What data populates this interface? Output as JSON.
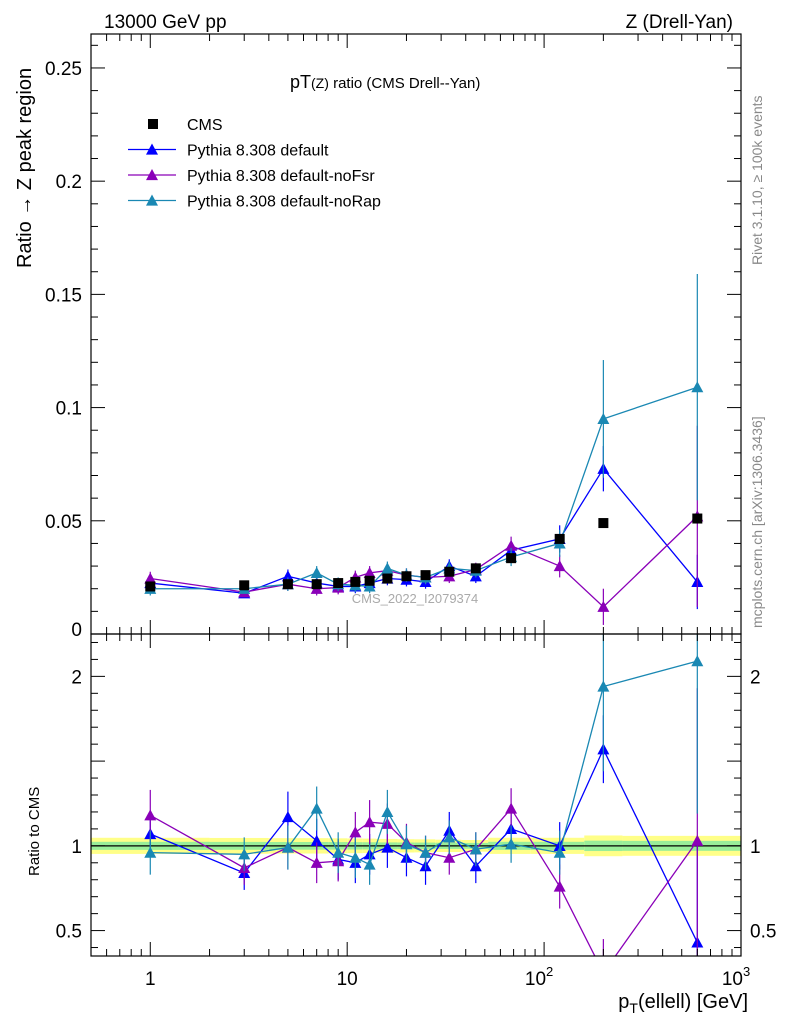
{
  "header": {
    "left": "13000 GeV pp",
    "right": "Z (Drell-Yan)"
  },
  "side_labels": {
    "rivet": "Rivet 3.1.10, ≥ 100k events",
    "mcplots": "mcplots.cern.ch [arXiv:1306.3436]"
  },
  "chart_data": {
    "type": "scatter",
    "title_main": "pT",
    "title_sub": "(Z)",
    "title_rest": " ratio (CMS Drell--Yan)",
    "watermark": "CMS_2022_I2079374",
    "xlabel_main": "p",
    "xlabel_sub": "T",
    "xlabel_rest": "(ellell) [GeV]",
    "ylabel": "Ratio → Z peak region",
    "ratio_ylabel": "Ratio to CMS",
    "x_scale": "log",
    "xlim": [
      0.5,
      1000
    ],
    "ylim": [
      0,
      0.265
    ],
    "ratio_ylim": [
      0.35,
      2.25
    ],
    "x_ticks": [
      {
        "value": 1,
        "label": "1"
      },
      {
        "value": 10,
        "label": "10"
      },
      {
        "value": 100,
        "label": "10",
        "exp": "2"
      },
      {
        "value": 1000,
        "label": "10",
        "exp": "3"
      }
    ],
    "y_ticks": [
      {
        "value": 0,
        "label": "0"
      },
      {
        "value": 0.05,
        "label": "0.05"
      },
      {
        "value": 0.1,
        "label": "0.1"
      },
      {
        "value": 0.15,
        "label": "0.15"
      },
      {
        "value": 0.2,
        "label": "0.2"
      },
      {
        "value": 0.25,
        "label": "0.25"
      }
    ],
    "ratio_ticks": [
      {
        "value": 0.5,
        "label": "0.5"
      },
      {
        "value": 1,
        "label": "1"
      },
      {
        "value": 2,
        "label": "2"
      }
    ],
    "x": [
      1,
      3,
      5,
      7,
      9,
      11,
      13,
      16,
      20,
      25,
      33,
      45,
      68,
      120,
      200,
      600
    ],
    "bin_edges": [
      0.5,
      2,
      4,
      6,
      8,
      10,
      12,
      14,
      18,
      22,
      28,
      38,
      52,
      85,
      160,
      250,
      1000
    ],
    "legend": [
      {
        "label": "CMS",
        "series": "cms"
      },
      {
        "label": "Pythia 8.308 default",
        "series": "default"
      },
      {
        "label": "Pythia 8.308 default-noFsr",
        "series": "noFsr"
      },
      {
        "label": "Pythia 8.308 default-noRap",
        "series": "noRap"
      }
    ],
    "series": [
      {
        "id": "cms",
        "name": "CMS",
        "color": "#000000",
        "marker": "square",
        "values": [
          0.021,
          0.0215,
          0.022,
          0.022,
          0.0225,
          0.023,
          0.0235,
          0.0245,
          0.0255,
          0.026,
          0.0275,
          0.029,
          0.0335,
          0.042,
          0.049,
          0.051
        ],
        "errors": [
          0.0005,
          0.0005,
          0.0005,
          0.0005,
          0.0005,
          0.0005,
          0.0005,
          0.0005,
          0.0005,
          0.0005,
          0.0005,
          0.0005,
          0.0008,
          0.001,
          0.0015,
          0.0015
        ]
      },
      {
        "id": "default",
        "name": "Pythia 8.308 default",
        "color": "#0000ff",
        "marker": "triangle",
        "values": [
          0.0225,
          0.018,
          0.0255,
          0.0225,
          0.021,
          0.021,
          0.0225,
          0.0245,
          0.024,
          0.023,
          0.03,
          0.0255,
          0.037,
          0.042,
          0.073,
          0.023
        ],
        "errors": [
          0.003,
          0.002,
          0.003,
          0.003,
          0.003,
          0.003,
          0.003,
          0.003,
          0.003,
          0.003,
          0.003,
          0.003,
          0.004,
          0.006,
          0.01,
          0.012
        ],
        "ratio": [
          1.07,
          0.84,
          1.17,
          1.03,
          0.92,
          0.9,
          0.95,
          0.99,
          0.93,
          0.88,
          1.09,
          0.88,
          1.1,
          1.0,
          1.57,
          0.43
        ],
        "ratio_errors": [
          0.13,
          0.1,
          0.15,
          0.13,
          0.12,
          0.12,
          0.12,
          0.12,
          0.11,
          0.11,
          0.11,
          0.1,
          0.11,
          0.14,
          0.2,
          0.6
        ]
      },
      {
        "id": "noFsr",
        "name": "Pythia 8.308 default-noFsr",
        "color": "#8a00b8",
        "marker": "triangle",
        "values": [
          0.0245,
          0.0185,
          0.022,
          0.02,
          0.0205,
          0.025,
          0.027,
          0.028,
          0.026,
          0.025,
          0.0255,
          0.0285,
          0.039,
          0.03,
          0.012,
          0.052
        ],
        "errors": [
          0.003,
          0.002,
          0.003,
          0.003,
          0.003,
          0.003,
          0.003,
          0.003,
          0.003,
          0.003,
          0.003,
          0.003,
          0.004,
          0.005,
          0.008,
          0.04
        ],
        "ratio": [
          1.18,
          0.87,
          0.99,
          0.9,
          0.91,
          1.08,
          1.14,
          1.13,
          1.02,
          0.96,
          0.93,
          0.98,
          1.22,
          0.76,
          0.25,
          1.03
        ],
        "ratio_errors": [
          0.15,
          0.1,
          0.13,
          0.12,
          0.12,
          0.12,
          0.13,
          0.12,
          0.11,
          0.1,
          0.1,
          0.1,
          0.12,
          0.13,
          0.2,
          0.9
        ]
      },
      {
        "id": "noRap",
        "name": "Pythia 8.308 default-noRap",
        "color": "#1a88b3",
        "marker": "triangle",
        "values": [
          0.02,
          0.02,
          0.022,
          0.027,
          0.022,
          0.0215,
          0.021,
          0.029,
          0.026,
          0.025,
          0.029,
          0.028,
          0.034,
          0.04,
          0.095,
          0.109
        ],
        "errors": [
          0.003,
          0.002,
          0.003,
          0.003,
          0.003,
          0.003,
          0.003,
          0.003,
          0.003,
          0.003,
          0.003,
          0.003,
          0.004,
          0.006,
          0.026,
          0.05
        ],
        "ratio": [
          0.96,
          0.95,
          0.99,
          1.22,
          0.96,
          0.93,
          0.89,
          1.2,
          1.01,
          0.96,
          1.05,
          0.98,
          1.01,
          0.96,
          1.94,
          2.09
        ],
        "ratio_errors": [
          0.13,
          0.1,
          0.13,
          0.13,
          0.12,
          0.12,
          0.12,
          0.13,
          0.11,
          0.1,
          0.1,
          0.1,
          0.11,
          0.13,
          0.5,
          0.9
        ]
      }
    ]
  }
}
